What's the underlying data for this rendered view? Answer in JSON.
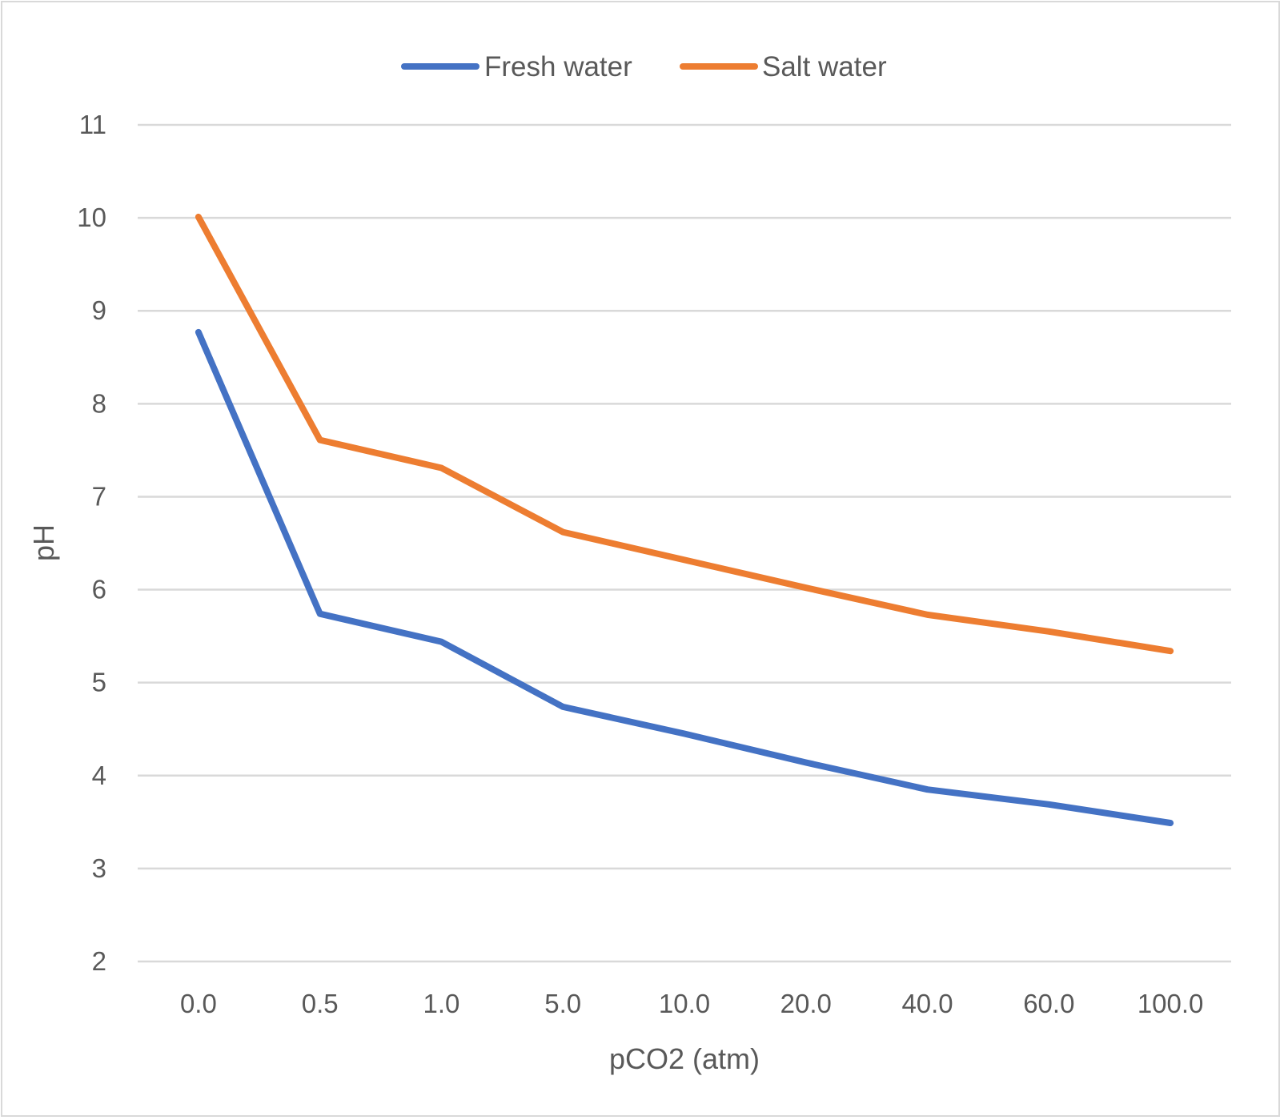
{
  "chart_data": {
    "type": "line",
    "title": "",
    "xlabel": "pCO2 (atm)",
    "ylabel": "pH",
    "categories": [
      "0.0",
      "0.5",
      "1.0",
      "5.0",
      "10.0",
      "20.0",
      "40.0",
      "60.0",
      "100.0"
    ],
    "ylim": [
      2,
      11
    ],
    "yticks": [
      "2",
      "3",
      "4",
      "5",
      "6",
      "7",
      "8",
      "9",
      "10",
      "11"
    ],
    "grid": true,
    "legend_position": "top",
    "series": [
      {
        "name": "Fresh water",
        "color": "#4472c4",
        "values": [
          8.77,
          5.74,
          5.44,
          4.74,
          4.45,
          4.14,
          3.85,
          3.69,
          3.49
        ]
      },
      {
        "name": "Salt water",
        "color": "#ed7d31",
        "values": [
          10.01,
          7.61,
          7.31,
          6.62,
          6.32,
          6.02,
          5.73,
          5.55,
          5.34
        ]
      }
    ]
  }
}
